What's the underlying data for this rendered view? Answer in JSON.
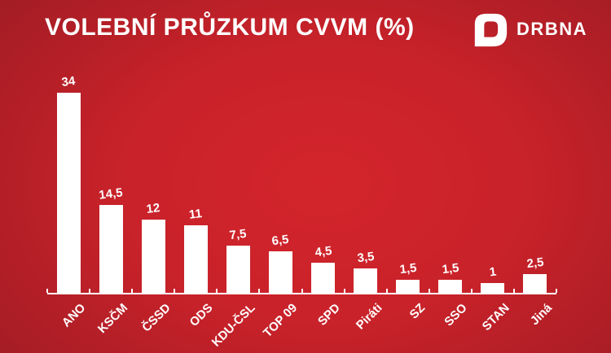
{
  "header": {
    "title": "VOLEBNÍ PRŮZKUM CVVM (%)",
    "logo": {
      "text": "DRBNA",
      "icon": "drbna-speech-bubble-icon"
    }
  },
  "colors": {
    "background_center": "#d3242b",
    "background_edge": "#921a22",
    "bar": "#ffffff",
    "text": "#ffffff"
  },
  "chart_data": {
    "type": "bar",
    "title": "VOLEBNÍ PRŮZKUM CVVM (%)",
    "categories": [
      "ANO",
      "KSČM",
      "ČSSD",
      "ODS",
      "KDU-ČSL",
      "TOP 09",
      "SPD",
      "Piráti",
      "SZ",
      "SSO",
      "STAN",
      "Jiná"
    ],
    "values": [
      34,
      14.5,
      12,
      11,
      7.5,
      6.5,
      4.5,
      3.5,
      1.5,
      1.5,
      1,
      2.5
    ],
    "value_labels": [
      "34",
      "14,5",
      "12",
      "11",
      "7,5",
      "6,5",
      "4,5",
      "3,5",
      "1,5",
      "1,5",
      "1",
      "2,5"
    ],
    "xlabel": "",
    "ylabel": "",
    "ylim": [
      0,
      34
    ],
    "grid": false,
    "legend": null,
    "bar_color": "#ffffff",
    "x_label_rotation_deg": -45
  }
}
